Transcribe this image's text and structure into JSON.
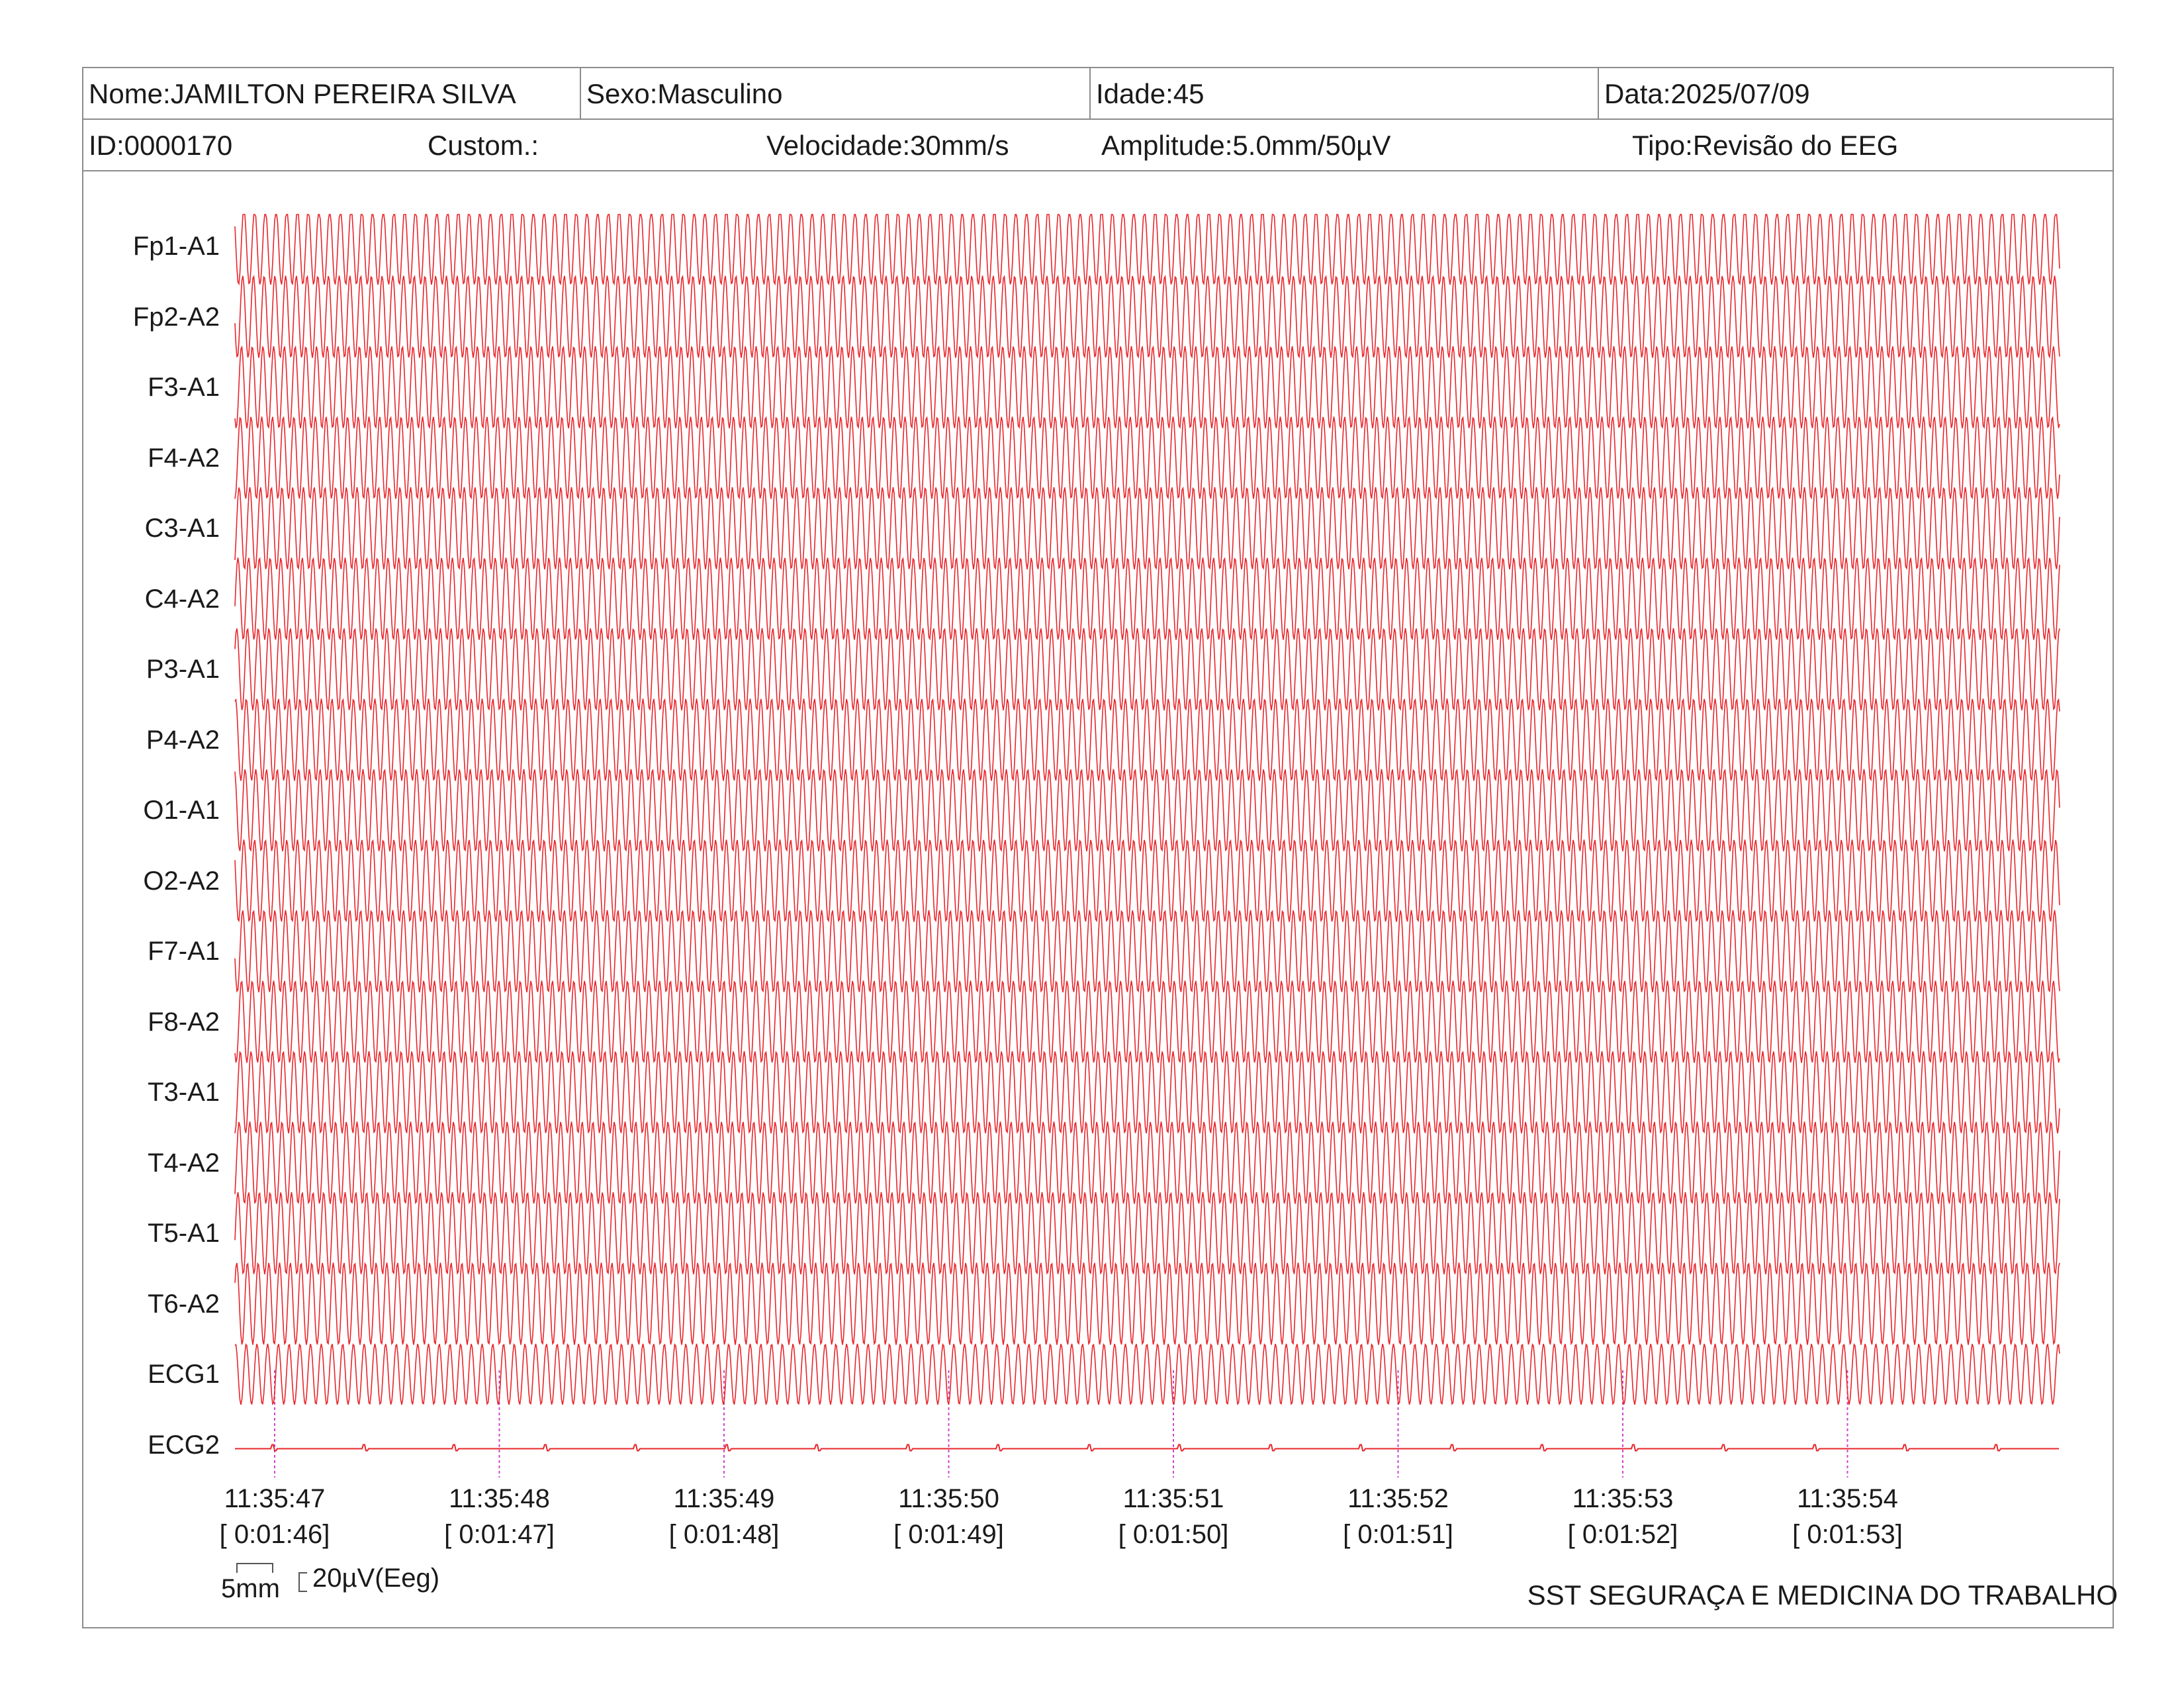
{
  "header": {
    "name": "Nome:JAMILTON PEREIRA SILVA",
    "sex": "Sexo:Masculino",
    "age": "Idade:45",
    "date": "Data:2025/07/09",
    "id": "ID:0000170",
    "custom": "Custom.:",
    "speed": "Velocidade:30mm/s",
    "amplitude": "Amplitude:5.0mm/50µV",
    "type": "Tipo:Revisão do EEG"
  },
  "channels": [
    "Fp1-A1",
    "Fp2-A2",
    "F3-A1",
    "F4-A2",
    "C3-A1",
    "C4-A2",
    "P3-A1",
    "P4-A2",
    "O1-A1",
    "O2-A2",
    "F7-A1",
    "F8-A2",
    "T3-A1",
    "T4-A2",
    "T5-A1",
    "T6-A2",
    "ECG1",
    "ECG2"
  ],
  "time_marks": [
    {
      "clock": "11:35:47",
      "elapsed": "[ 0:01:46]"
    },
    {
      "clock": "11:35:48",
      "elapsed": "[ 0:01:47]"
    },
    {
      "clock": "11:35:49",
      "elapsed": "[ 0:01:48]"
    },
    {
      "clock": "11:35:50",
      "elapsed": "[ 0:01:49]"
    },
    {
      "clock": "11:35:51",
      "elapsed": "[ 0:01:50]"
    },
    {
      "clock": "11:35:52",
      "elapsed": "[ 0:01:51]"
    },
    {
      "clock": "11:35:53",
      "elapsed": "[ 0:01:52]"
    },
    {
      "clock": "11:35:54",
      "elapsed": "[ 0:01:53]"
    }
  ],
  "scale": {
    "time_label": "5mm",
    "amp_label": "20µV(Eeg)"
  },
  "footer": "SST SEGURAÇA E MEDICINA DO TRABALHO",
  "colors": {
    "trace": "#e8252a",
    "marker": "#cc44cc",
    "border": "#8c8c8c"
  }
}
